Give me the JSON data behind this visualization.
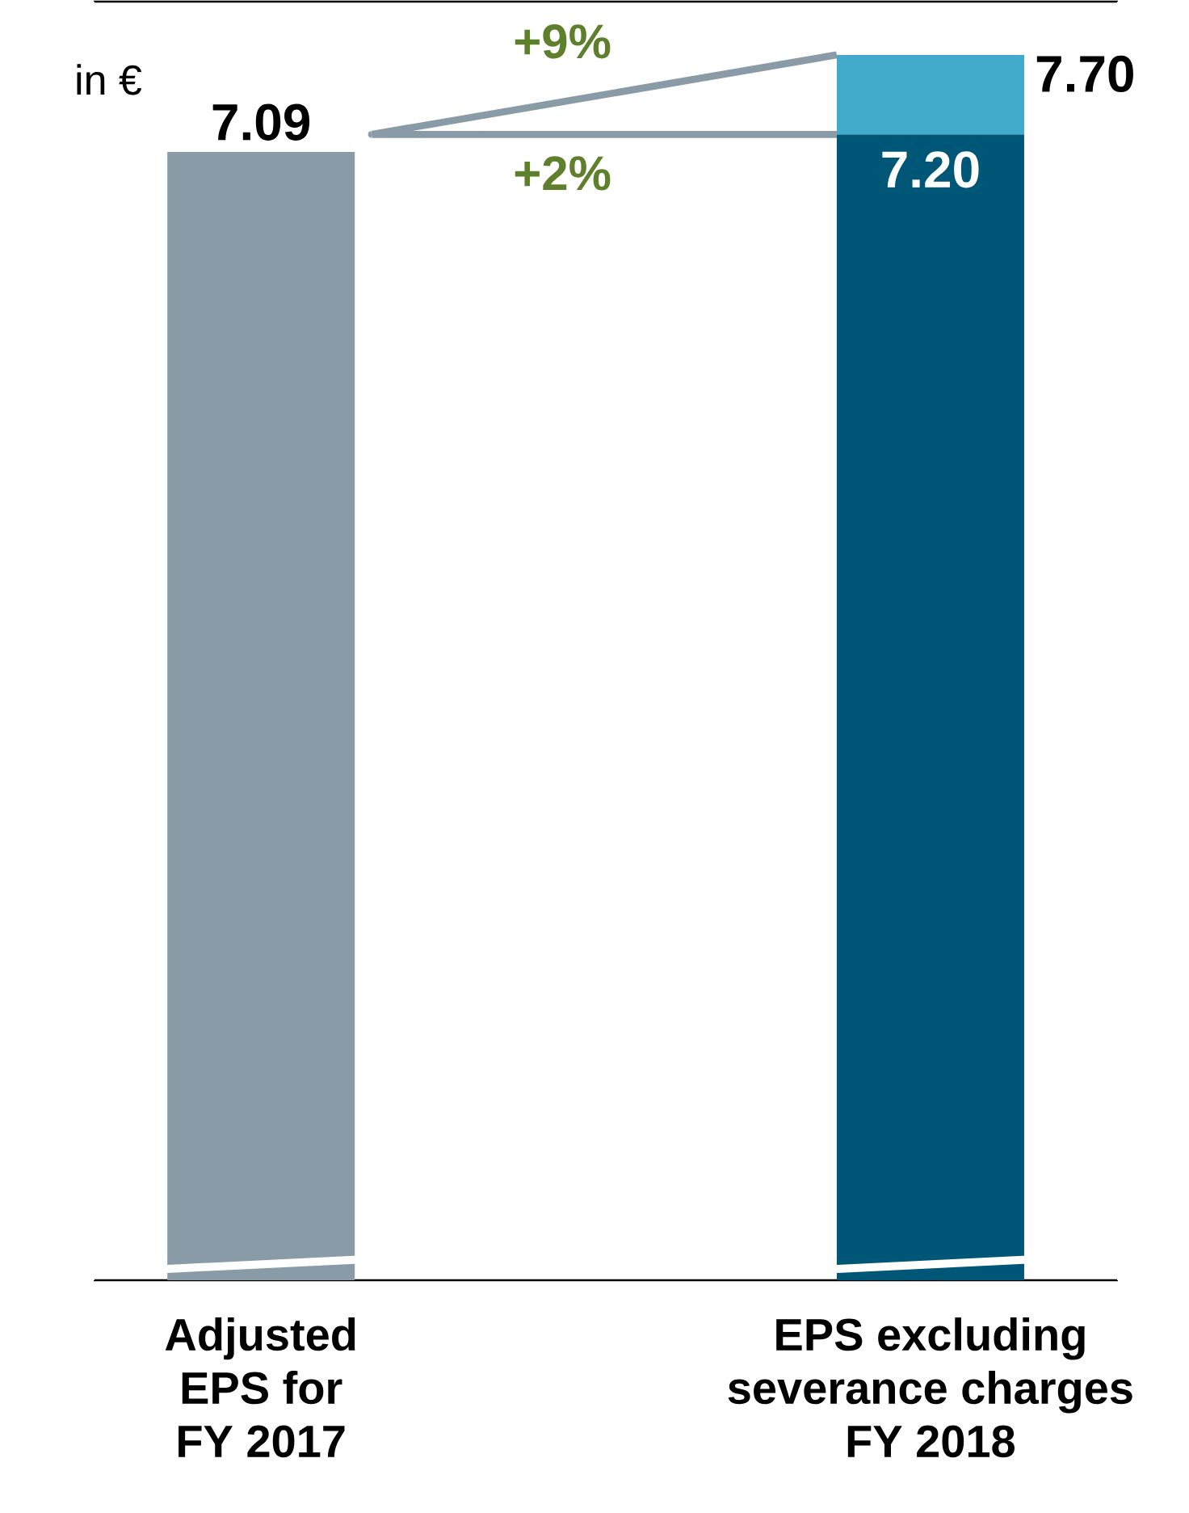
{
  "chart_data": {
    "type": "bar",
    "stacked": true,
    "categories": [
      "Adjusted EPS for FY 2017",
      "EPS excluding severance charges FY 2018"
    ],
    "series": [
      {
        "colors": [
          "#8a9ba8",
          "#005677"
        ],
        "values": [
          7.09,
          7.2
        ],
        "value_labels": [
          "7.09",
          "7.20"
        ]
      },
      {
        "color": "#42aacb",
        "values": [
          null,
          0.5
        ],
        "value_labels": [
          null,
          null
        ]
      }
    ],
    "totals": [
      null,
      "7.70"
    ],
    "annotations": [
      "in €",
      "+9%",
      "+2%"
    ]
  }
}
